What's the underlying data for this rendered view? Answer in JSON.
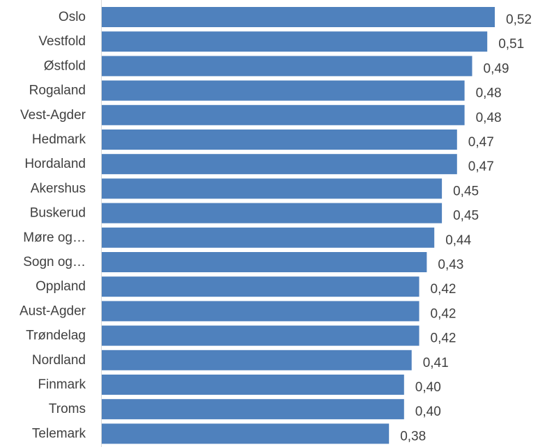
{
  "chart_data": {
    "type": "bar",
    "orientation": "horizontal",
    "categories": [
      "Oslo",
      "Vestfold",
      "Østfold",
      "Rogaland",
      "Vest-Agder",
      "Hedmark",
      "Hordaland",
      "Akershus",
      "Buskerud",
      "Møre og…",
      "Sogn og…",
      "Oppland",
      "Aust-Agder",
      "Trøndelag",
      "Nordland",
      "Finmark",
      "Troms",
      "Telemark"
    ],
    "values": [
      0.52,
      0.51,
      0.49,
      0.48,
      0.48,
      0.47,
      0.47,
      0.45,
      0.45,
      0.44,
      0.43,
      0.42,
      0.42,
      0.42,
      0.41,
      0.4,
      0.4,
      0.38
    ],
    "value_labels": [
      "0,52",
      "0,51",
      "0,49",
      "0,48",
      "0,48",
      "0,47",
      "0,47",
      "0,45",
      "0,45",
      "0,44",
      "0,43",
      "0,42",
      "0,42",
      "0,42",
      "0,41",
      "0,40",
      "0,40",
      "0,38"
    ],
    "xlim": [
      0,
      0.52
    ],
    "grid": false,
    "legend": "none",
    "colors": {
      "bar": "#4f81bd",
      "axis": "#d9d9d9",
      "text": "#404040"
    }
  }
}
